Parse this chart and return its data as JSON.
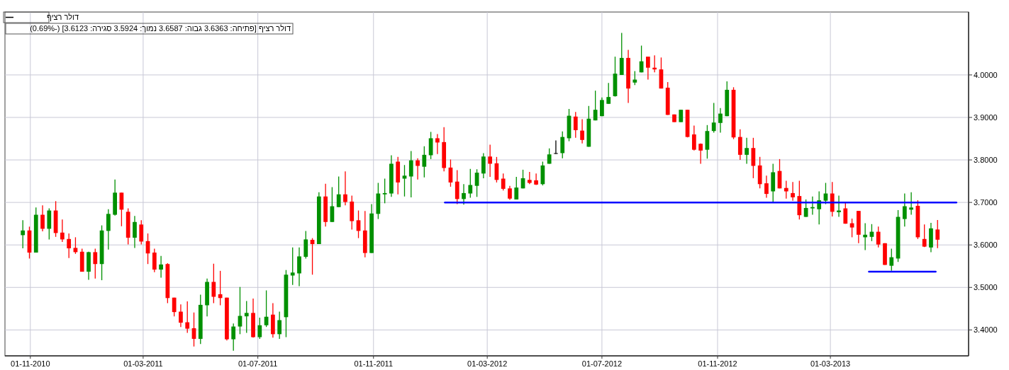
{
  "chart_data": {
    "type": "candlestick",
    "legend": "top left",
    "grid": true,
    "annotations": [
      "דולר רציף [פתיחה: 3.6363  גבוה: 3.6587  נמוך: 3.5924  סגירה: 3.6123] (-0.69%)"
    ],
    "xlim": [
      "2010-10-05",
      "2013-07-26"
    ],
    "xticks": [
      {
        "value": "2010-11-01",
        "label": "01-11-2010"
      },
      {
        "value": "2011-03-01",
        "label": "01-03-2011"
      },
      {
        "value": "2011-07-01",
        "label": "01-07-2011"
      },
      {
        "value": "2011-11-01",
        "label": "01-11-2011"
      },
      {
        "value": "2012-03-01",
        "label": "01-03-2012"
      },
      {
        "value": "2012-07-01",
        "label": "01-07-2012"
      },
      {
        "value": "2012-11-01",
        "label": "01-11-2012"
      },
      {
        "value": "2013-03-01",
        "label": "01-03-2013"
      }
    ],
    "ylim": [
      3.339,
      4.148
    ],
    "yticks": [
      {
        "value": 3.4,
        "label": "3.4000"
      },
      {
        "value": 3.5,
        "label": "3.5000"
      },
      {
        "value": 3.6,
        "label": "3.6000"
      },
      {
        "value": 3.7,
        "label": "3.7000"
      },
      {
        "value": 3.8,
        "label": "3.8000"
      },
      {
        "value": 3.9,
        "label": "3.9000"
      },
      {
        "value": 4.0,
        "label": "4.0000"
      }
    ],
    "x": [
      "2010-10-24",
      "2010-10-31",
      "2010-11-07",
      "2010-11-14",
      "2010-11-21",
      "2010-11-28",
      "2010-12-05",
      "2010-12-12",
      "2010-12-19",
      "2010-12-26",
      "2011-01-02",
      "2011-01-09",
      "2011-01-16",
      "2011-01-23",
      "2011-01-30",
      "2011-02-06",
      "2011-02-13",
      "2011-02-20",
      "2011-02-27",
      "2011-03-06",
      "2011-03-13",
      "2011-03-20",
      "2011-03-27",
      "2011-04-03",
      "2011-04-10",
      "2011-04-17",
      "2011-04-24",
      "2011-05-01",
      "2011-05-08",
      "2011-05-15",
      "2011-05-22",
      "2011-05-29",
      "2011-06-05",
      "2011-06-12",
      "2011-06-19",
      "2011-06-26",
      "2011-07-03",
      "2011-07-10",
      "2011-07-17",
      "2011-07-24",
      "2011-07-31",
      "2011-08-07",
      "2011-08-14",
      "2011-08-21",
      "2011-08-28",
      "2011-09-04",
      "2011-09-11",
      "2011-09-18",
      "2011-09-25",
      "2011-10-02",
      "2011-10-09",
      "2011-10-16",
      "2011-10-23",
      "2011-10-30",
      "2011-11-06",
      "2011-11-13",
      "2011-11-20",
      "2011-11-27",
      "2011-12-04",
      "2011-12-11",
      "2011-12-18",
      "2011-12-25",
      "2012-01-01",
      "2012-01-08",
      "2012-01-15",
      "2012-01-22",
      "2012-01-29",
      "2012-02-05",
      "2012-02-12",
      "2012-02-19",
      "2012-02-26",
      "2012-03-04",
      "2012-03-11",
      "2012-03-18",
      "2012-03-25",
      "2012-04-01",
      "2012-04-08",
      "2012-04-15",
      "2012-04-22",
      "2012-04-29",
      "2012-05-06",
      "2012-05-13",
      "2012-05-20",
      "2012-05-27",
      "2012-06-03",
      "2012-06-10",
      "2012-06-17",
      "2012-06-24",
      "2012-07-01",
      "2012-07-08",
      "2012-07-15",
      "2012-07-22",
      "2012-07-29",
      "2012-08-05",
      "2012-08-12",
      "2012-08-19",
      "2012-08-26",
      "2012-09-02",
      "2012-09-09",
      "2012-09-16",
      "2012-09-23",
      "2012-09-30",
      "2012-10-07",
      "2012-10-14",
      "2012-10-21",
      "2012-10-28",
      "2012-11-04",
      "2012-11-11",
      "2012-11-18",
      "2012-11-25",
      "2012-12-02",
      "2012-12-09",
      "2012-12-16",
      "2012-12-23",
      "2012-12-30",
      "2013-01-06",
      "2013-01-13",
      "2013-01-20",
      "2013-01-27",
      "2013-02-03",
      "2013-02-10",
      "2013-02-17",
      "2013-02-24",
      "2013-03-03",
      "2013-03-10",
      "2013-03-17",
      "2013-03-24",
      "2013-03-31",
      "2013-04-07",
      "2013-04-14",
      "2013-04-21",
      "2013-04-28",
      "2013-05-05",
      "2013-05-12",
      "2013-05-19",
      "2013-05-26",
      "2013-06-02",
      "2013-06-09",
      "2013-06-16",
      "2013-06-23"
    ],
    "series": [
      {
        "name": "דולר רציף",
        "color": "#000000",
        "colors": [
          "#009000",
          "#ff0000",
          "#009000",
          "#ff0000",
          "#009000",
          "#ff0000",
          "#ff0000",
          "#ff0000",
          "#ff0000",
          "#ff0000",
          "#009000",
          "#ff0000",
          "#009000",
          "#009000",
          "#009000",
          "#ff0000",
          "#ff0000",
          "#009000",
          "#ff0000",
          "#ff0000",
          "#ff0000",
          "#009000",
          "#ff0000",
          "#ff0000",
          "#ff0000",
          "#ff0000",
          "#ff0000",
          "#009000",
          "#009000",
          "#ff0000",
          "#ff0000",
          "#ff0000",
          "#009000",
          "#009000",
          "#009000",
          "#ff0000",
          "#009000",
          "#009000",
          "#ff0000",
          "#009000",
          "#009000",
          "#009000",
          "#009000",
          "#009000",
          "#ff0000",
          "#009000",
          "#ff0000",
          "#009000",
          "#009000",
          "#ff0000",
          "#ff0000",
          "#ff0000",
          "#ff0000",
          "#009000",
          "#009000",
          "#009000",
          "#009000",
          "#ff0000",
          "#009000",
          "#009000",
          "#ff0000",
          "#009000",
          "#009000",
          "#ff0000",
          "#ff0000",
          "#ff0000",
          "#ff0000",
          "#009000",
          "#009000",
          "#009000",
          "#009000",
          "#ff0000",
          "#ff0000",
          "#ff0000",
          "#ff0000",
          "#009000",
          "#009000",
          "#ff0000",
          "#ff0000",
          "#009000",
          "#009000",
          "#000000",
          "#009000",
          "#009000",
          "#ff0000",
          "#ff0000",
          "#009000",
          "#009000",
          "#009000",
          "#009000",
          "#009000",
          "#009000",
          "#ff0000",
          "#009000",
          "#009000",
          "#ff0000",
          "#ff0000",
          "#ff0000",
          "#ff0000",
          "#ff0000",
          "#009000",
          "#ff0000",
          "#ff0000",
          "#ff0000",
          "#009000",
          "#009000",
          "#009000",
          "#009000",
          "#ff0000",
          "#ff0000",
          "#009000",
          "#ff0000",
          "#ff0000",
          "#ff0000",
          "#009000",
          "#ff0000",
          "#ff0000",
          "#ff0000",
          "#ff0000",
          "#009000",
          "#009000",
          "#009000",
          "#009000",
          "#ff0000",
          "#009000",
          "#ff0000",
          "#ff0000",
          "#ff0000",
          "#009000",
          "#009000",
          "#ff0000",
          "#ff0000",
          "#009000",
          "#009000",
          "#009000",
          "#009000",
          "#ff0000",
          "#ff0000",
          "#009000",
          "#ff0000"
        ],
        "ohlc": [
          [
            3.623,
            3.658,
            3.592,
            3.634
          ],
          [
            3.634,
            3.643,
            3.568,
            3.582
          ],
          [
            3.582,
            3.688,
            3.582,
            3.671
          ],
          [
            3.671,
            3.693,
            3.632,
            3.638
          ],
          [
            3.638,
            3.686,
            3.613,
            3.681
          ],
          [
            3.681,
            3.703,
            3.619,
            3.628
          ],
          [
            3.629,
            3.66,
            3.607,
            3.613
          ],
          [
            3.614,
            3.627,
            3.569,
            3.592
          ],
          [
            3.593,
            3.618,
            3.579,
            3.583
          ],
          [
            3.584,
            3.591,
            3.537,
            3.537
          ],
          [
            3.537,
            3.584,
            3.518,
            3.583
          ],
          [
            3.583,
            3.591,
            3.521,
            3.555
          ],
          [
            3.555,
            3.646,
            3.517,
            3.634
          ],
          [
            3.633,
            3.684,
            3.589,
            3.673
          ],
          [
            3.671,
            3.754,
            3.669,
            3.723
          ],
          [
            3.723,
            3.723,
            3.644,
            3.683
          ],
          [
            3.678,
            3.686,
            3.601,
            3.617
          ],
          [
            3.617,
            3.668,
            3.593,
            3.654
          ],
          [
            3.648,
            3.658,
            3.601,
            3.608
          ],
          [
            3.609,
            3.627,
            3.555,
            3.58
          ],
          [
            3.582,
            3.591,
            3.536,
            3.542
          ],
          [
            3.542,
            3.574,
            3.523,
            3.554
          ],
          [
            3.555,
            3.557,
            3.463,
            3.475
          ],
          [
            3.476,
            3.476,
            3.432,
            3.442
          ],
          [
            3.443,
            3.46,
            3.407,
            3.417
          ],
          [
            3.418,
            3.467,
            3.393,
            3.403
          ],
          [
            3.404,
            3.441,
            3.361,
            3.379
          ],
          [
            3.379,
            3.483,
            3.367,
            3.459
          ],
          [
            3.458,
            3.521,
            3.432,
            3.513
          ],
          [
            3.513,
            3.556,
            3.463,
            3.478
          ],
          [
            3.484,
            3.539,
            3.458,
            3.475
          ],
          [
            3.476,
            3.476,
            3.375,
            3.378
          ],
          [
            3.378,
            3.415,
            3.351,
            3.408
          ],
          [
            3.408,
            3.501,
            3.39,
            3.433
          ],
          [
            3.432,
            3.468,
            3.393,
            3.44
          ],
          [
            3.44,
            3.474,
            3.382,
            3.383
          ],
          [
            3.383,
            3.429,
            3.379,
            3.411
          ],
          [
            3.411,
            3.493,
            3.407,
            3.431
          ],
          [
            3.436,
            3.463,
            3.382,
            3.39
          ],
          [
            3.39,
            3.443,
            3.379,
            3.423
          ],
          [
            3.43,
            3.541,
            3.383,
            3.53
          ],
          [
            3.528,
            3.594,
            3.506,
            3.535
          ],
          [
            3.533,
            3.594,
            3.503,
            3.573
          ],
          [
            3.572,
            3.633,
            3.568,
            3.613
          ],
          [
            3.612,
            3.616,
            3.53,
            3.602
          ],
          [
            3.602,
            3.724,
            3.602,
            3.714
          ],
          [
            3.714,
            3.744,
            3.643,
            3.654
          ],
          [
            3.654,
            3.736,
            3.654,
            3.691
          ],
          [
            3.689,
            3.761,
            3.689,
            3.719
          ],
          [
            3.719,
            3.773,
            3.693,
            3.701
          ],
          [
            3.702,
            3.716,
            3.636,
            3.656
          ],
          [
            3.658,
            3.681,
            3.616,
            3.633
          ],
          [
            3.634,
            3.68,
            3.571,
            3.581
          ],
          [
            3.581,
            3.696,
            3.581,
            3.674
          ],
          [
            3.673,
            3.746,
            3.661,
            3.721
          ],
          [
            3.719,
            3.756,
            3.698,
            3.722
          ],
          [
            3.721,
            3.811,
            3.713,
            3.791
          ],
          [
            3.796,
            3.807,
            3.719,
            3.747
          ],
          [
            3.756,
            3.788,
            3.714,
            3.763
          ],
          [
            3.761,
            3.821,
            3.712,
            3.799
          ],
          [
            3.799,
            3.804,
            3.754,
            3.786
          ],
          [
            3.784,
            3.832,
            3.759,
            3.812
          ],
          [
            3.811,
            3.866,
            3.802,
            3.851
          ],
          [
            3.851,
            3.861,
            3.814,
            3.841
          ],
          [
            3.842,
            3.877,
            3.773,
            3.781
          ],
          [
            3.782,
            3.801,
            3.737,
            3.747
          ],
          [
            3.749,
            3.776,
            3.696,
            3.708
          ],
          [
            3.708,
            3.743,
            3.695,
            3.722
          ],
          [
            3.721,
            3.779,
            3.711,
            3.741
          ],
          [
            3.739,
            3.778,
            3.713,
            3.77
          ],
          [
            3.768,
            3.816,
            3.757,
            3.808
          ],
          [
            3.808,
            3.836,
            3.76,
            3.791
          ],
          [
            3.792,
            3.807,
            3.747,
            3.753
          ],
          [
            3.756,
            3.768,
            3.728,
            3.732
          ],
          [
            3.733,
            3.739,
            3.706,
            3.709
          ],
          [
            3.707,
            3.76,
            3.707,
            3.735
          ],
          [
            3.733,
            3.777,
            3.733,
            3.757
          ],
          [
            3.753,
            3.772,
            3.743,
            3.746
          ],
          [
            3.752,
            3.768,
            3.741,
            3.742
          ],
          [
            3.743,
            3.796,
            3.74,
            3.787
          ],
          [
            3.791,
            3.827,
            3.791,
            3.813
          ],
          [
            3.816,
            3.846,
            3.814,
            3.816
          ],
          [
            3.816,
            3.867,
            3.804,
            3.854
          ],
          [
            3.851,
            3.92,
            3.844,
            3.904
          ],
          [
            3.902,
            3.913,
            3.852,
            3.87
          ],
          [
            3.869,
            3.896,
            3.839,
            3.847
          ],
          [
            3.831,
            3.927,
            3.831,
            3.897
          ],
          [
            3.893,
            3.963,
            3.893,
            3.918
          ],
          [
            3.903,
            3.947,
            3.903,
            3.941
          ],
          [
            3.932,
            3.981,
            3.932,
            3.948
          ],
          [
            3.95,
            4.043,
            3.949,
            4.003
          ],
          [
            4.0,
            4.099,
            4.0,
            4.04
          ],
          [
            4.04,
            4.059,
            3.934,
            3.968
          ],
          [
            3.982,
            4.009,
            3.976,
            3.989
          ],
          [
            4.006,
            4.069,
            4.006,
            4.032
          ],
          [
            4.043,
            4.043,
            3.989,
            4.017
          ],
          [
            4.017,
            4.046,
            4.006,
            4.013
          ],
          [
            4.013,
            4.041,
            3.968,
            3.968
          ],
          [
            3.97,
            3.983,
            3.906,
            3.906
          ],
          [
            3.907,
            3.907,
            3.889,
            3.889
          ],
          [
            3.889,
            3.918,
            3.889,
            3.918
          ],
          [
            3.918,
            3.918,
            3.853,
            3.854
          ],
          [
            3.86,
            3.881,
            3.822,
            3.824
          ],
          [
            3.838,
            3.839,
            3.791,
            3.822
          ],
          [
            3.824,
            3.882,
            3.803,
            3.868
          ],
          [
            3.868,
            3.934,
            3.864,
            3.888
          ],
          [
            3.887,
            3.922,
            3.864,
            3.909
          ],
          [
            3.903,
            3.985,
            3.903,
            3.965
          ],
          [
            3.965,
            3.971,
            3.849,
            3.853
          ],
          [
            3.854,
            3.872,
            3.8,
            3.812
          ],
          [
            3.812,
            3.852,
            3.791,
            3.828
          ],
          [
            3.828,
            3.852,
            3.757,
            3.786
          ],
          [
            3.787,
            3.807,
            3.733,
            3.743
          ],
          [
            3.745,
            3.763,
            3.711,
            3.72
          ],
          [
            3.726,
            3.791,
            3.702,
            3.771
          ],
          [
            3.774,
            3.802,
            3.733,
            3.733
          ],
          [
            3.734,
            3.751,
            3.709,
            3.726
          ],
          [
            3.722,
            3.748,
            3.704,
            3.712
          ],
          [
            3.715,
            3.751,
            3.66,
            3.67
          ],
          [
            3.666,
            3.707,
            3.666,
            3.687
          ],
          [
            3.686,
            3.714,
            3.671,
            3.689
          ],
          [
            3.684,
            3.726,
            3.648,
            3.705
          ],
          [
            3.704,
            3.746,
            3.696,
            3.721
          ],
          [
            3.721,
            3.748,
            3.667,
            3.678
          ],
          [
            3.677,
            3.716,
            3.666,
            3.681
          ],
          [
            3.686,
            3.699,
            3.65,
            3.65
          ],
          [
            3.651,
            3.662,
            3.618,
            3.641
          ],
          [
            3.68,
            3.68,
            3.604,
            3.624
          ],
          [
            3.618,
            3.651,
            3.588,
            3.624
          ],
          [
            3.619,
            3.649,
            3.609,
            3.631
          ],
          [
            3.631,
            3.643,
            3.594,
            3.601
          ],
          [
            3.604,
            3.604,
            3.553,
            3.553
          ],
          [
            3.551,
            3.591,
            3.539,
            3.571
          ],
          [
            3.568,
            3.682,
            3.56,
            3.666
          ],
          [
            3.661,
            3.721,
            3.643,
            3.691
          ],
          [
            3.683,
            3.724,
            3.671,
            3.688
          ],
          [
            3.692,
            3.705,
            3.614,
            3.618
          ],
          [
            3.614,
            3.648,
            3.595,
            3.596
          ],
          [
            3.594,
            3.652,
            3.583,
            3.639
          ],
          [
            3.6363,
            3.6587,
            3.5924,
            3.6123
          ]
        ]
      },
      {
        "type": "line",
        "color": "#0000ff",
        "x": [
          "2012-01-16",
          "2013-07-13"
        ],
        "values": [
          3.7,
          3.7
        ]
      },
      {
        "type": "line",
        "color": "#0000ff",
        "x": [
          "2013-04-11",
          "2013-06-21"
        ],
        "values": [
          3.537,
          3.537
        ]
      }
    ]
  }
}
